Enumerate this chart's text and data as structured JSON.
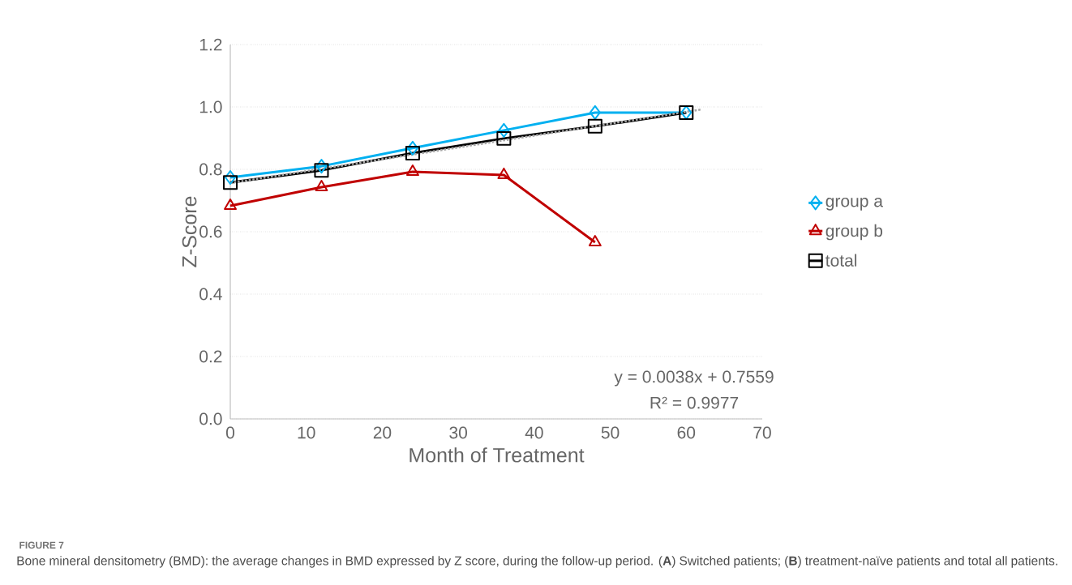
{
  "chart_data": {
    "type": "line",
    "title": "FIGURE 7",
    "xlabel": "Month of Treatment",
    "ylabel": "Z-Score",
    "annotations": [
      "y = 0.0038x + 0.7559",
      "R² = 0.9977",
      "Bone mineral densitometry (BMD): the average changes in BMD expressed by Z score, during the follow-up period. (**A**) Switched patients; (**B**) treatment-naïve patients and total all patients."
    ],
    "x": [
      0,
      12,
      24,
      36,
      48,
      60
    ],
    "series": [
      {
        "name": "group a",
        "color": "#00b0f0",
        "marker": "diamond",
        "values": [
          0.774,
          0.81,
          0.868,
          0.925,
          0.982,
          0.982
        ]
      },
      {
        "name": "group b",
        "color": "#c00000",
        "marker": "triangle",
        "values": [
          0.683,
          0.743,
          0.792,
          0.782,
          0.566,
          null
        ]
      },
      {
        "name": "total",
        "color": "#000000",
        "marker": "square",
        "values": [
          0.758,
          0.797,
          0.852,
          0.899,
          0.938,
          0.982
        ]
      },
      {
        "color": "#a6a6a6",
        "marker": "none",
        "line_style": "dotted",
        "x": [
          0,
          62
        ],
        "values": [
          0.756,
          0.992
        ]
      }
    ],
    "xlim": [
      0,
      70
    ],
    "xticks": [
      0,
      10,
      20,
      30,
      40,
      50,
      60,
      70
    ],
    "ylim": [
      0,
      1.2
    ],
    "yticks": [
      {
        "value": 0,
        "label": "0.0"
      },
      {
        "value": 0.2,
        "label": "0.2"
      },
      {
        "value": 0.4,
        "label": "0.4"
      },
      {
        "value": 0.6,
        "label": "0.6"
      },
      {
        "value": 0.8,
        "label": "0.8"
      },
      {
        "value": 1.0,
        "label": "1.0"
      },
      {
        "value": 1.2,
        "label": "1.2"
      }
    ],
    "grid": "y",
    "legend": "right",
    "line_style": "solid"
  }
}
